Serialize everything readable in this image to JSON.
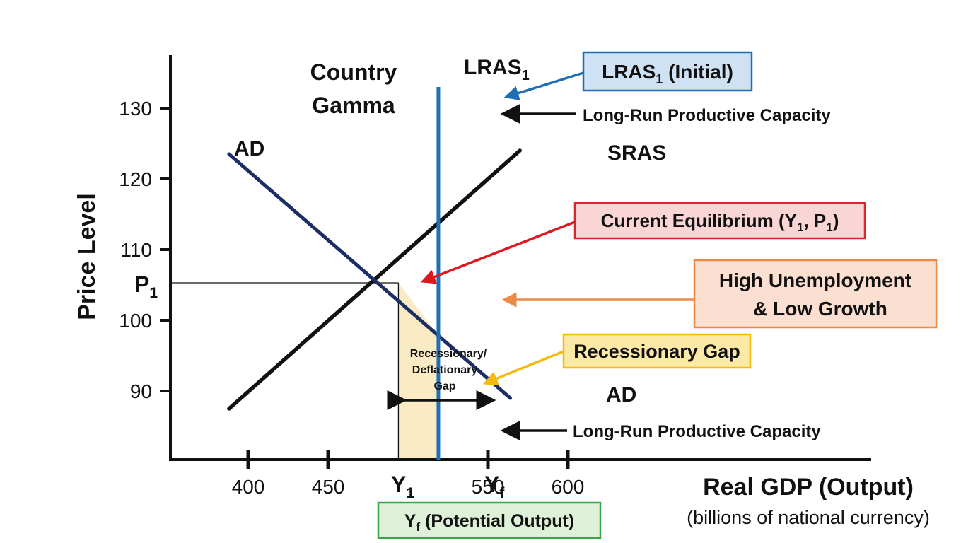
{
  "chart_data": {
    "type": "line",
    "title_line1": "Country",
    "title_line2": "Gamma",
    "ylabel": "Price Level",
    "xlabel": "Real GDP (Output)",
    "xlabel_sub": "(billions of national currency)",
    "xlim": [
      360,
      640
    ],
    "ylim": [
      80,
      135
    ],
    "y_ticks": [
      {
        "value": 90,
        "label": "90"
      },
      {
        "value": 100,
        "label": "100"
      },
      {
        "value": 110,
        "label": "110"
      },
      {
        "value": 120,
        "label": "120"
      },
      {
        "value": 130,
        "label": "130"
      }
    ],
    "x_ticks": [
      {
        "value": 400,
        "label": "400"
      },
      {
        "value": 450,
        "label": "450"
      },
      {
        "value": 550,
        "label": "550"
      },
      {
        "value": 600,
        "label": "600"
      }
    ],
    "series": [
      {
        "name": "AD",
        "x": [
          388,
          564
        ],
        "y": [
          123.5,
          89
        ],
        "color": "#1b2f66"
      },
      {
        "name": "SRAS",
        "x": [
          388,
          570
        ],
        "y": [
          87.5,
          124
        ],
        "color": "#111111"
      },
      {
        "name": "LRAS",
        "x": [
          519,
          519
        ],
        "y": [
          80,
          133
        ],
        "color": "#1f6fb2"
      }
    ],
    "equilibrium": {
      "x": 494,
      "y": 105.3
    },
    "p1_label": "P",
    "p1_sub": "1",
    "y1_label": "Y",
    "y1_sub": "1",
    "yf_label": "Y",
    "yf_sub": "f",
    "curve_labels": {
      "ad_top": "AD",
      "ad_bottom": "AD",
      "sras": "SRAS",
      "lras": "LRAS",
      "lras_sub": "1"
    },
    "gap_label": [
      "Recessionary/",
      "Deflationary",
      "Gap"
    ],
    "callouts": {
      "lras_initial": {
        "text": "LRAS",
        "sub": "1",
        "suffix": " (Initial)",
        "bg": "#cfe2f3",
        "border": "#1f6fb2"
      },
      "capacity_top": "Long-Run Productive Capacity",
      "capacity_bottom": "Long-Run Productive Capacity",
      "equilibrium": {
        "prefix": "Current Equilibrium  (Y",
        "sub1": "1",
        "mid": ", P",
        "sub2": "1",
        "suffix": ")",
        "bg": "#f9d6d5",
        "border": "#d9272e"
      },
      "unemployment": {
        "line1": "High Unemployment",
        "line2": "& Low Growth",
        "bg": "#fbe0d2",
        "border": "#ec8a45"
      },
      "recessionary": {
        "text": "Recessionary Gap",
        "bg": "#fde9a6",
        "border": "#f2b90f"
      },
      "potential": {
        "prefix": "Y",
        "sub": "f",
        "suffix": " (Potential Output)",
        "bg": "#dff0d8",
        "border": "#3ca34a"
      }
    },
    "colors": {
      "gap_fill": "#fbebc4",
      "arrow_blue": "#1f6fb2",
      "arrow_red": "#e0161e",
      "arrow_orange": "#ec8a45",
      "arrow_yellow": "#f2b90f"
    }
  }
}
